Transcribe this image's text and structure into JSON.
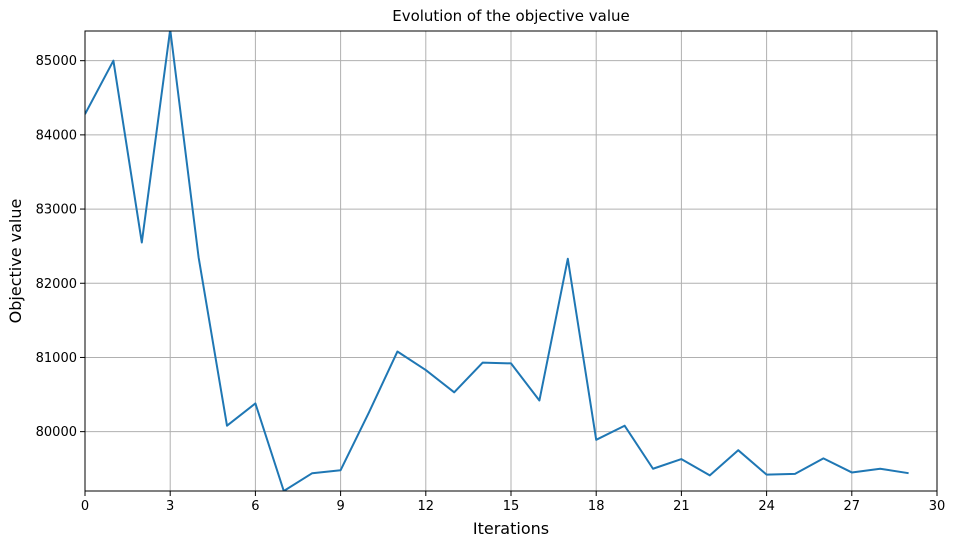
{
  "chart_data": {
    "type": "line",
    "title": "Evolution of the objective value",
    "xlabel": "Iterations",
    "ylabel": "Objective value",
    "xlim": [
      0,
      30
    ],
    "ylim": [
      79200,
      85400
    ],
    "xticks": [
      0,
      3,
      6,
      9,
      12,
      15,
      18,
      21,
      24,
      27,
      30
    ],
    "yticks": [
      80000,
      81000,
      82000,
      83000,
      84000,
      85000
    ],
    "grid": true,
    "series_color": "#1f77b4",
    "series": [
      {
        "x": [
          0,
          1,
          2,
          3,
          4,
          5,
          6,
          7,
          8,
          9,
          10,
          11,
          12,
          13,
          14,
          15,
          16,
          17,
          18,
          19,
          20,
          21,
          22,
          23,
          24,
          25,
          26,
          27,
          28,
          29
        ],
        "y": [
          84280,
          85000,
          82550,
          85420,
          82350,
          80080,
          80380,
          79200,
          79440,
          79480,
          80260,
          81080,
          80830,
          80530,
          80930,
          80920,
          80420,
          82330,
          79890,
          80080,
          79500,
          79630,
          79410,
          79750,
          79420,
          79430,
          79640,
          79450,
          79500,
          79440
        ]
      }
    ]
  }
}
